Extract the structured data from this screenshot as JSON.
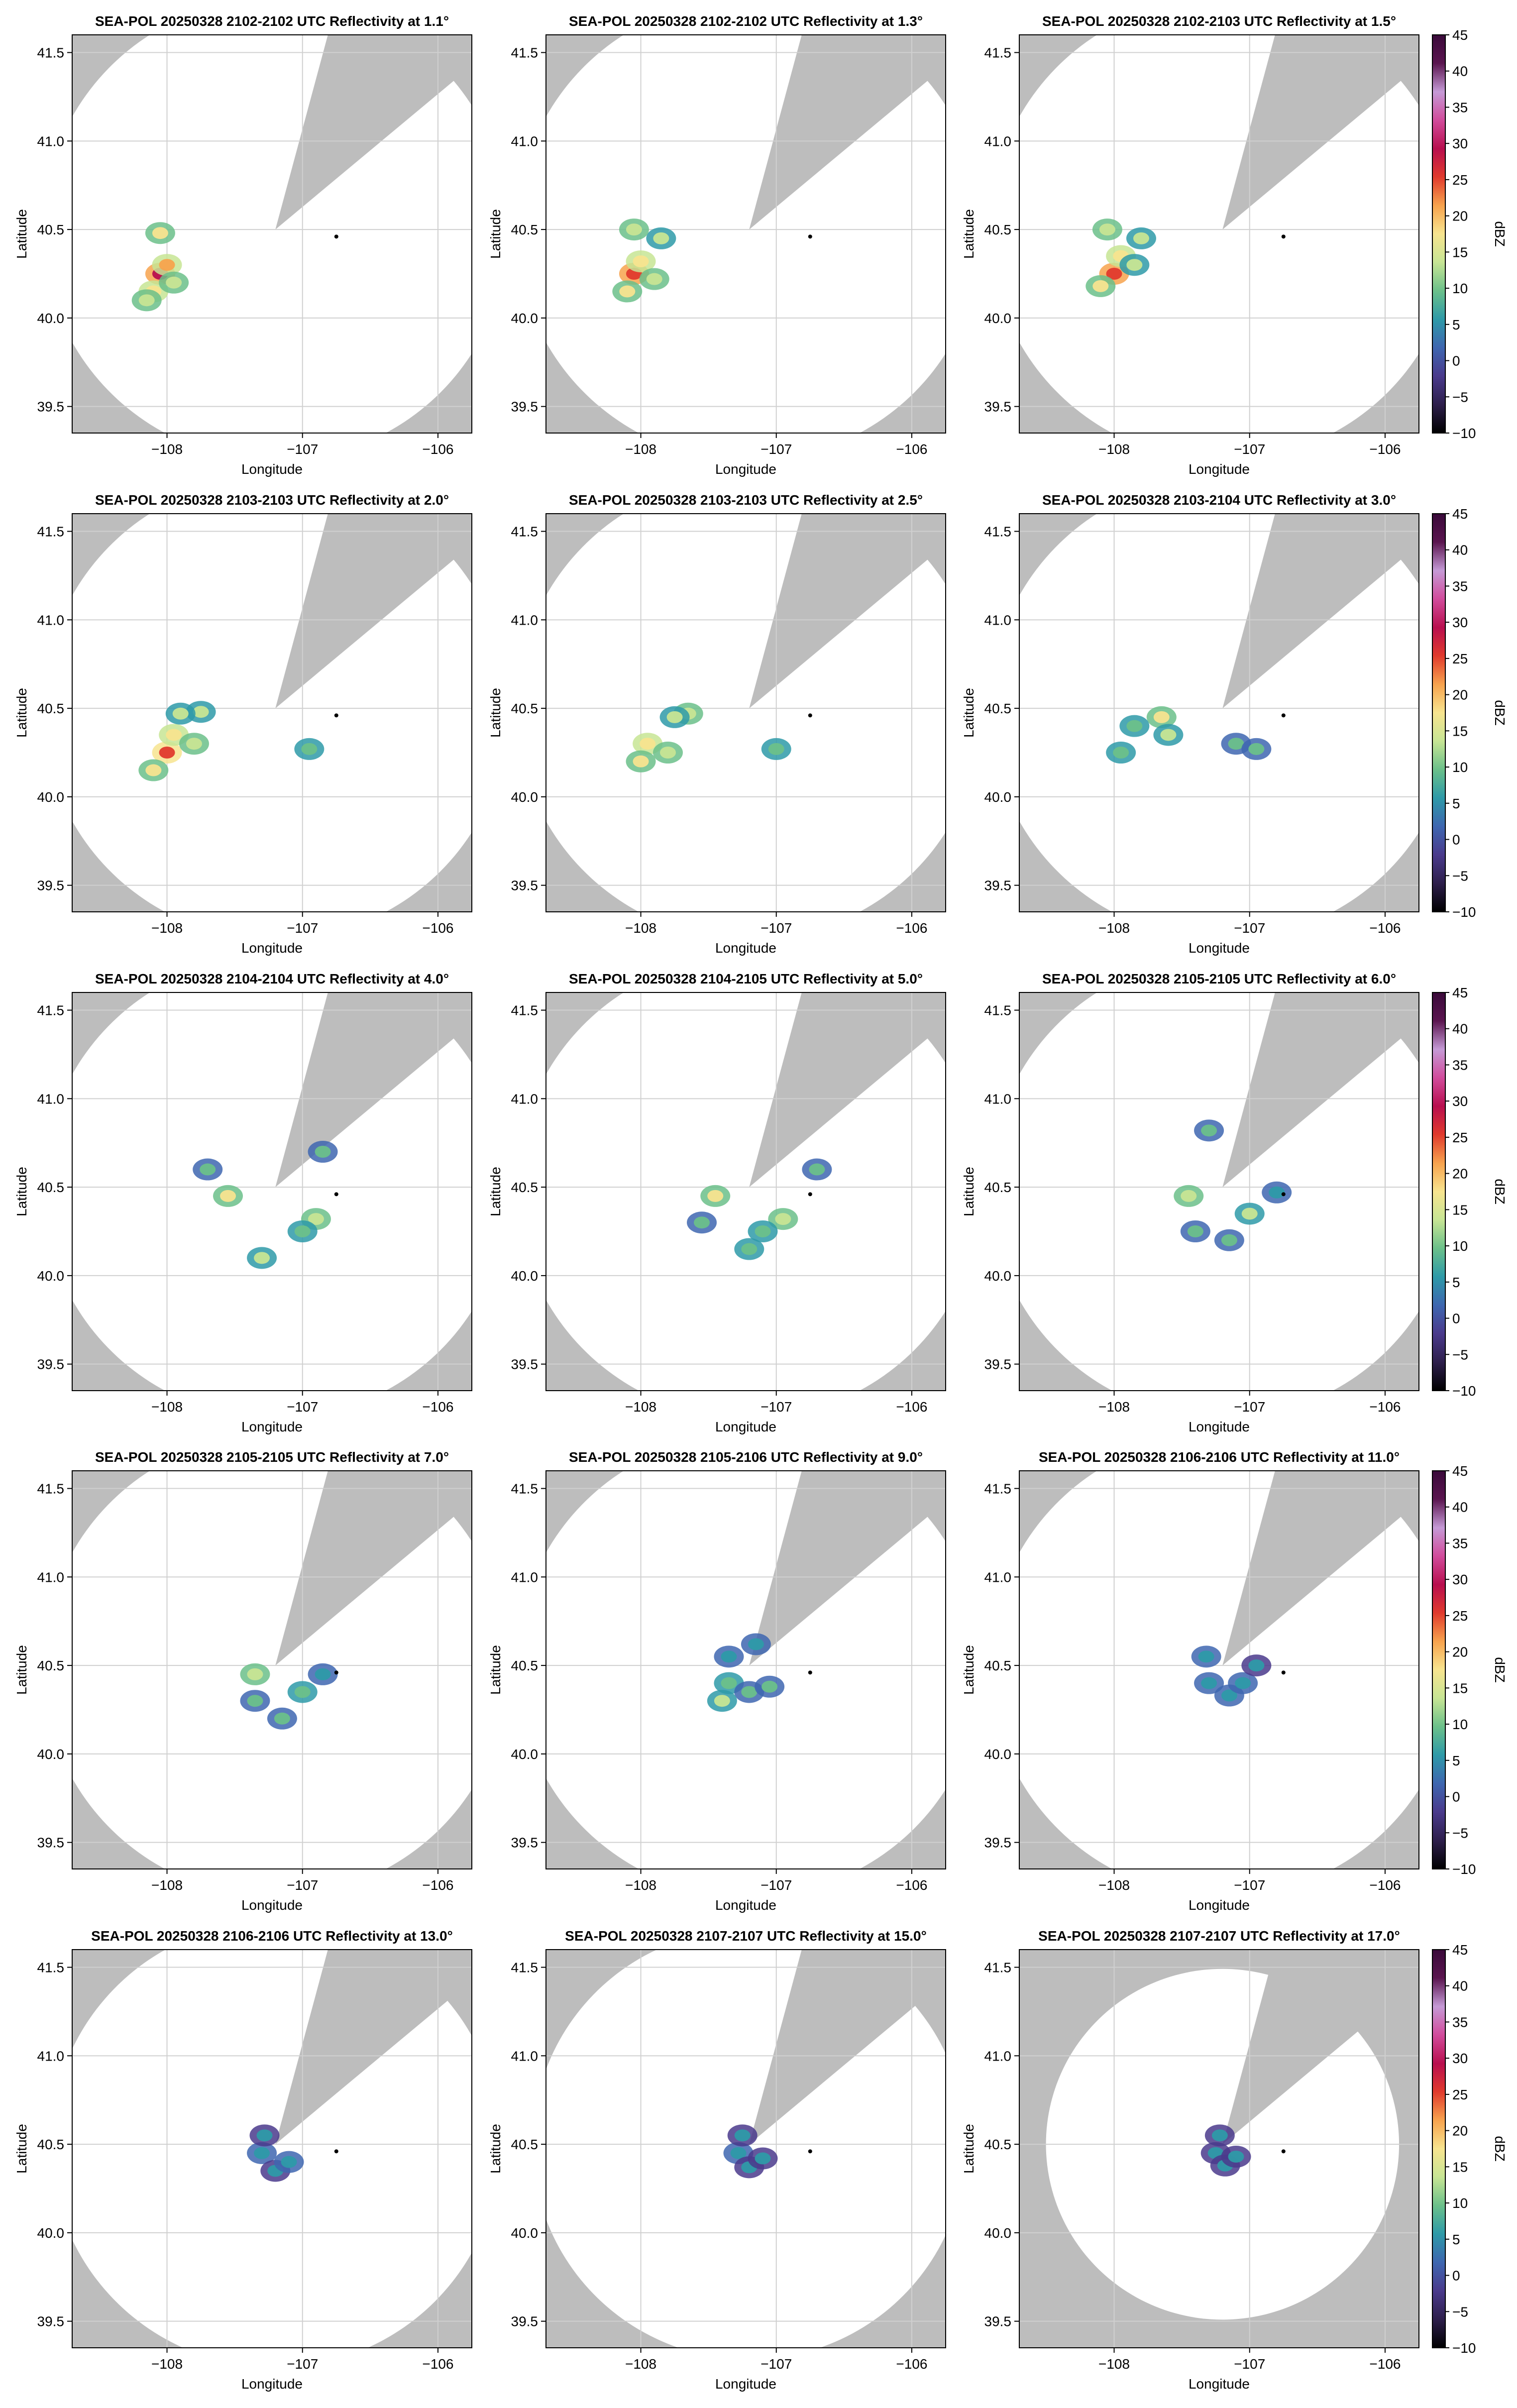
{
  "figure": {
    "background_color": "#ffffff",
    "axes_face_color": "#bdbdbd",
    "coverage_color": "#ffffff",
    "marker_color": "#000000"
  },
  "colorbar": {
    "label": "dBZ",
    "range": [
      -10,
      45
    ],
    "ticks": [
      "45",
      "40",
      "35",
      "30",
      "25",
      "20",
      "15",
      "10",
      "5",
      "0",
      "−5",
      "−10"
    ],
    "colors": [
      "#000000",
      "#2d1e4b",
      "#4a3a8c",
      "#3e66b0",
      "#2e9aa8",
      "#6bc08a",
      "#c7e594",
      "#f7e48f",
      "#f7a34e",
      "#e03a2d",
      "#b80f4f",
      "#d14c9c",
      "#c59ad6",
      "#5a154f",
      "#3a0a3a"
    ]
  },
  "chart_data": {
    "type": "ppi-small-multiples",
    "xlabel": "Longitude",
    "ylabel": "Latitude",
    "xlim": [
      -108.7,
      -105.75
    ],
    "ylim": [
      39.35,
      41.6
    ],
    "xticks": [
      "−108",
      "−107",
      "−106"
    ],
    "yticks": [
      "41.5",
      "41.0",
      "40.5",
      "40.0",
      "39.5"
    ],
    "xtick_values": [
      -108,
      -107,
      -106
    ],
    "ytick_values": [
      41.5,
      41.0,
      40.5,
      40.0,
      39.5
    ],
    "radar_center": {
      "lon": -107.2,
      "lat": 40.5
    },
    "point_marker": {
      "lon": -106.75,
      "lat": 40.46
    },
    "grid": true,
    "panels": [
      {
        "title": "SEA-POL 20250328 2102-2102 UTC Reflectivity at 1.1°",
        "elevation_deg": 1.1,
        "time_range": "2102-2102",
        "coverage_radius_km": 145,
        "blanked_sector_deg": [
          15,
          50
        ],
        "echoes": [
          {
            "lon": -108.05,
            "lat": 40.25,
            "dbz": 28
          },
          {
            "lon": -108.0,
            "lat": 40.3,
            "dbz": 20
          },
          {
            "lon": -108.1,
            "lat": 40.15,
            "dbz": 18
          },
          {
            "lon": -107.95,
            "lat": 40.2,
            "dbz": 15
          },
          {
            "lon": -108.05,
            "lat": 40.48,
            "dbz": 16
          },
          {
            "lon": -108.15,
            "lat": 40.1,
            "dbz": 14
          }
        ]
      },
      {
        "title": "SEA-POL 20250328 2102-2102 UTC Reflectivity at 1.3°",
        "elevation_deg": 1.3,
        "time_range": "2102-2102",
        "coverage_radius_km": 145,
        "blanked_sector_deg": [
          15,
          50
        ],
        "echoes": [
          {
            "lon": -108.05,
            "lat": 40.25,
            "dbz": 27
          },
          {
            "lon": -108.0,
            "lat": 40.32,
            "dbz": 19
          },
          {
            "lon": -108.1,
            "lat": 40.15,
            "dbz": 17
          },
          {
            "lon": -107.9,
            "lat": 40.22,
            "dbz": 14
          },
          {
            "lon": -107.85,
            "lat": 40.45,
            "dbz": 12
          },
          {
            "lon": -108.05,
            "lat": 40.5,
            "dbz": 15
          }
        ]
      },
      {
        "title": "SEA-POL 20250328 2102-2103 UTC Reflectivity at 1.5°",
        "elevation_deg": 1.5,
        "time_range": "2102-2103",
        "coverage_radius_km": 145,
        "blanked_sector_deg": [
          15,
          50
        ],
        "echoes": [
          {
            "lon": -108.0,
            "lat": 40.25,
            "dbz": 26
          },
          {
            "lon": -107.95,
            "lat": 40.35,
            "dbz": 18
          },
          {
            "lon": -108.1,
            "lat": 40.18,
            "dbz": 17
          },
          {
            "lon": -107.85,
            "lat": 40.3,
            "dbz": 13
          },
          {
            "lon": -107.8,
            "lat": 40.45,
            "dbz": 12
          },
          {
            "lon": -108.05,
            "lat": 40.5,
            "dbz": 14
          }
        ]
      },
      {
        "title": "SEA-POL 20250328 2103-2103 UTC Reflectivity at 2.0°",
        "elevation_deg": 2.0,
        "time_range": "2103-2103",
        "coverage_radius_km": 145,
        "blanked_sector_deg": [
          15,
          50
        ],
        "echoes": [
          {
            "lon": -108.0,
            "lat": 40.25,
            "dbz": 25
          },
          {
            "lon": -107.95,
            "lat": 40.35,
            "dbz": 18
          },
          {
            "lon": -108.1,
            "lat": 40.15,
            "dbz": 16
          },
          {
            "lon": -107.8,
            "lat": 40.3,
            "dbz": 14
          },
          {
            "lon": -107.75,
            "lat": 40.48,
            "dbz": 12
          },
          {
            "lon": -107.9,
            "lat": 40.47,
            "dbz": 13
          },
          {
            "lon": -106.95,
            "lat": 40.27,
            "dbz": 10
          }
        ]
      },
      {
        "title": "SEA-POL 20250328 2103-2103 UTC Reflectivity at 2.5°",
        "elevation_deg": 2.5,
        "time_range": "2103-2103",
        "coverage_radius_km": 145,
        "blanked_sector_deg": [
          15,
          50
        ],
        "echoes": [
          {
            "lon": -107.95,
            "lat": 40.3,
            "dbz": 18
          },
          {
            "lon": -107.65,
            "lat": 40.47,
            "dbz": 15
          },
          {
            "lon": -107.75,
            "lat": 40.45,
            "dbz": 13
          },
          {
            "lon": -108.0,
            "lat": 40.2,
            "dbz": 16
          },
          {
            "lon": -107.8,
            "lat": 40.25,
            "dbz": 14
          },
          {
            "lon": -107.0,
            "lat": 40.27,
            "dbz": 10
          }
        ]
      },
      {
        "title": "SEA-POL 20250328 2103-2104 UTC Reflectivity at 3.0°",
        "elevation_deg": 3.0,
        "time_range": "2103-2104",
        "coverage_radius_km": 145,
        "blanked_sector_deg": [
          15,
          50
        ],
        "echoes": [
          {
            "lon": -107.65,
            "lat": 40.45,
            "dbz": 16
          },
          {
            "lon": -107.6,
            "lat": 40.35,
            "dbz": 12
          },
          {
            "lon": -107.85,
            "lat": 40.4,
            "dbz": 11
          },
          {
            "lon": -107.95,
            "lat": 40.25,
            "dbz": 10
          },
          {
            "lon": -107.1,
            "lat": 40.3,
            "dbz": 9
          },
          {
            "lon": -106.95,
            "lat": 40.27,
            "dbz": 9
          }
        ]
      },
      {
        "title": "SEA-POL 20250328 2104-2104 UTC Reflectivity at 4.0°",
        "elevation_deg": 4.0,
        "time_range": "2104-2104",
        "coverage_radius_km": 145,
        "blanked_sector_deg": [
          15,
          50
        ],
        "echoes": [
          {
            "lon": -107.55,
            "lat": 40.45,
            "dbz": 17
          },
          {
            "lon": -106.9,
            "lat": 40.32,
            "dbz": 14
          },
          {
            "lon": -107.3,
            "lat": 40.1,
            "dbz": 12
          },
          {
            "lon": -107.0,
            "lat": 40.25,
            "dbz": 11
          },
          {
            "lon": -106.85,
            "lat": 40.7,
            "dbz": 8
          },
          {
            "lon": -107.7,
            "lat": 40.6,
            "dbz": 8
          }
        ]
      },
      {
        "title": "SEA-POL 20250328 2104-2105 UTC Reflectivity at 5.0°",
        "elevation_deg": 5.0,
        "time_range": "2104-2105",
        "coverage_radius_km": 145,
        "blanked_sector_deg": [
          15,
          50
        ],
        "echoes": [
          {
            "lon": -107.45,
            "lat": 40.45,
            "dbz": 17
          },
          {
            "lon": -106.95,
            "lat": 40.32,
            "dbz": 14
          },
          {
            "lon": -107.2,
            "lat": 40.15,
            "dbz": 11
          },
          {
            "lon": -107.1,
            "lat": 40.25,
            "dbz": 10
          },
          {
            "lon": -106.7,
            "lat": 40.6,
            "dbz": 8
          },
          {
            "lon": -107.55,
            "lat": 40.3,
            "dbz": 8
          }
        ]
      },
      {
        "title": "SEA-POL 20250328 2105-2105 UTC Reflectivity at 6.0°",
        "elevation_deg": 6.0,
        "time_range": "2105-2105",
        "coverage_radius_km": 145,
        "blanked_sector_deg": [
          15,
          50
        ],
        "echoes": [
          {
            "lon": -107.45,
            "lat": 40.45,
            "dbz": 15
          },
          {
            "lon": -107.0,
            "lat": 40.35,
            "dbz": 12
          },
          {
            "lon": -107.15,
            "lat": 40.2,
            "dbz": 9
          },
          {
            "lon": -107.3,
            "lat": 40.82,
            "dbz": 8
          },
          {
            "lon": -107.4,
            "lat": 40.25,
            "dbz": 8
          },
          {
            "lon": -106.8,
            "lat": 40.47,
            "dbz": 7
          }
        ]
      },
      {
        "title": "SEA-POL 20250328 2105-2105 UTC Reflectivity at 7.0°",
        "elevation_deg": 7.0,
        "time_range": "2105-2105",
        "coverage_radius_km": 145,
        "blanked_sector_deg": [
          15,
          50
        ],
        "echoes": [
          {
            "lon": -107.35,
            "lat": 40.45,
            "dbz": 14
          },
          {
            "lon": -107.0,
            "lat": 40.35,
            "dbz": 11
          },
          {
            "lon": -107.15,
            "lat": 40.2,
            "dbz": 9
          },
          {
            "lon": -107.35,
            "lat": 40.3,
            "dbz": 8
          },
          {
            "lon": -106.85,
            "lat": 40.45,
            "dbz": 7
          }
        ]
      },
      {
        "title": "SEA-POL 20250328 2105-2106 UTC Reflectivity at 9.0°",
        "elevation_deg": 9.0,
        "time_range": "2105-2106",
        "coverage_radius_km": 145,
        "blanked_sector_deg": [
          15,
          50
        ],
        "echoes": [
          {
            "lon": -107.35,
            "lat": 40.4,
            "dbz": 10
          },
          {
            "lon": -107.2,
            "lat": 40.35,
            "dbz": 8
          },
          {
            "lon": -107.05,
            "lat": 40.38,
            "dbz": 8
          },
          {
            "lon": -107.35,
            "lat": 40.55,
            "dbz": 7
          },
          {
            "lon": -107.15,
            "lat": 40.62,
            "dbz": 6
          },
          {
            "lon": -107.4,
            "lat": 40.3,
            "dbz": 12
          }
        ]
      },
      {
        "title": "SEA-POL 20250328 2106-2106 UTC Reflectivity at 11.0°",
        "elevation_deg": 11.0,
        "time_range": "2106-2106",
        "coverage_radius_km": 145,
        "blanked_sector_deg": [
          15,
          50
        ],
        "echoes": [
          {
            "lon": -107.3,
            "lat": 40.4,
            "dbz": 7
          },
          {
            "lon": -107.15,
            "lat": 40.33,
            "dbz": 6
          },
          {
            "lon": -107.05,
            "lat": 40.4,
            "dbz": 7
          },
          {
            "lon": -107.32,
            "lat": 40.55,
            "dbz": 6
          },
          {
            "lon": -106.95,
            "lat": 40.5,
            "dbz": 5
          }
        ]
      },
      {
        "title": "SEA-POL 20250328 2106-2106 UTC Reflectivity at 13.0°",
        "elevation_deg": 13.0,
        "time_range": "2106-2106",
        "coverage_radius_km": 140,
        "blanked_sector_deg": [
          15,
          50
        ],
        "echoes": [
          {
            "lon": -107.3,
            "lat": 40.45,
            "dbz": 6
          },
          {
            "lon": -107.2,
            "lat": 40.35,
            "dbz": 5
          },
          {
            "lon": -107.1,
            "lat": 40.4,
            "dbz": 6
          },
          {
            "lon": -107.28,
            "lat": 40.55,
            "dbz": 5
          }
        ]
      },
      {
        "title": "SEA-POL 20250328 2107-2107 UTC Reflectivity at 15.0°",
        "elevation_deg": 15.0,
        "time_range": "2107-2107",
        "coverage_radius_km": 135,
        "blanked_sector_deg": [
          15,
          50
        ],
        "echoes": [
          {
            "lon": -107.28,
            "lat": 40.45,
            "dbz": 6
          },
          {
            "lon": -107.2,
            "lat": 40.37,
            "dbz": 5
          },
          {
            "lon": -107.1,
            "lat": 40.42,
            "dbz": 5
          },
          {
            "lon": -107.25,
            "lat": 40.55,
            "dbz": 4
          }
        ]
      },
      {
        "title": "SEA-POL 20250328 2107-2107 UTC Reflectivity at 17.0°",
        "elevation_deg": 17.0,
        "time_range": "2107-2107",
        "coverage_radius_km": 110,
        "blanked_sector_deg": [
          15,
          50
        ],
        "echoes": [
          {
            "lon": -107.25,
            "lat": 40.45,
            "dbz": 5
          },
          {
            "lon": -107.18,
            "lat": 40.38,
            "dbz": 4
          },
          {
            "lon": -107.1,
            "lat": 40.43,
            "dbz": 5
          },
          {
            "lon": -107.22,
            "lat": 40.55,
            "dbz": 4
          }
        ]
      }
    ]
  }
}
